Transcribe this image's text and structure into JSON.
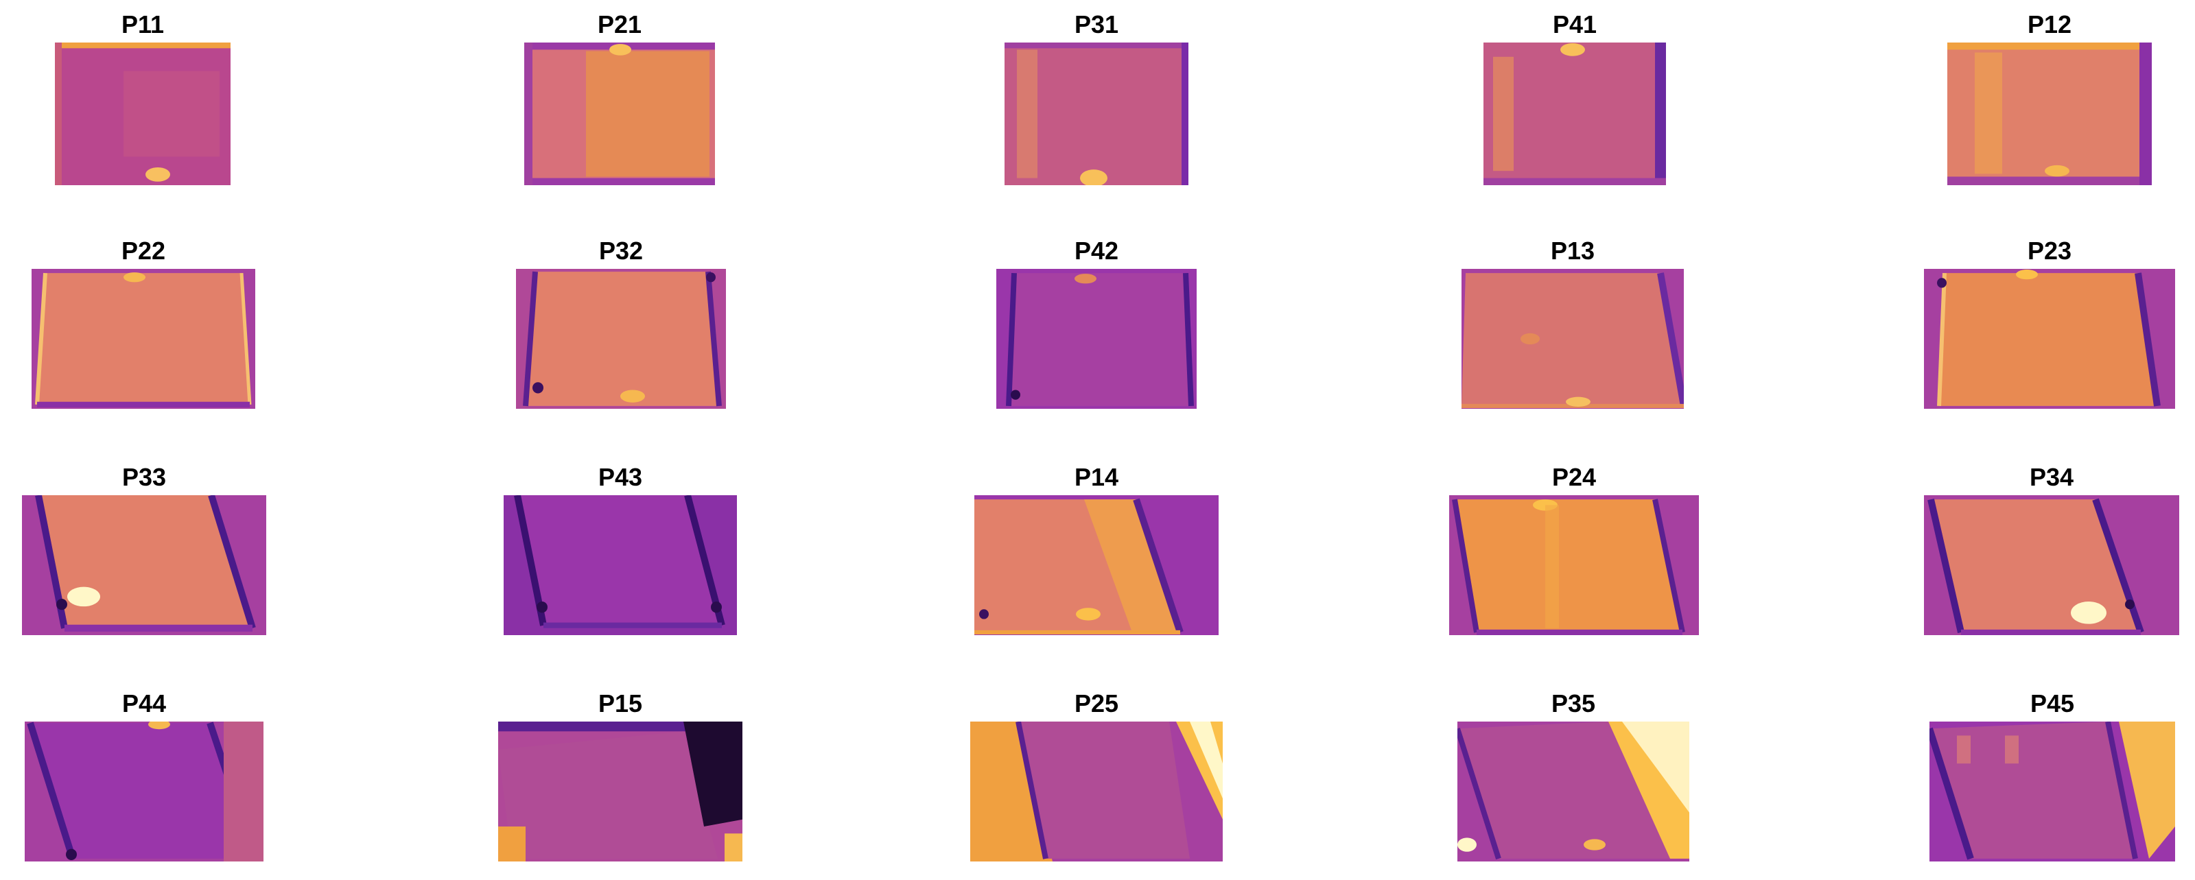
{
  "figure": {
    "panels": [
      {
        "title": "P11",
        "tone": "mid"
      },
      {
        "title": "P21",
        "tone": "warm"
      },
      {
        "title": "P31",
        "tone": "mid"
      },
      {
        "title": "P41",
        "tone": "mid"
      },
      {
        "title": "P12",
        "tone": "warm"
      },
      {
        "title": "P22",
        "tone": "warm"
      },
      {
        "title": "P32",
        "tone": "warm"
      },
      {
        "title": "P42",
        "tone": "cool"
      },
      {
        "title": "P13",
        "tone": "warm"
      },
      {
        "title": "P23",
        "tone": "warm"
      },
      {
        "title": "P33",
        "tone": "warm"
      },
      {
        "title": "P43",
        "tone": "cool"
      },
      {
        "title": "P14",
        "tone": "warm"
      },
      {
        "title": "P24",
        "tone": "warm"
      },
      {
        "title": "P34",
        "tone": "warm"
      },
      {
        "title": "P44",
        "tone": "cool"
      },
      {
        "title": "P15",
        "tone": "cool"
      },
      {
        "title": "P25",
        "tone": "mid"
      },
      {
        "title": "P35",
        "tone": "mid"
      },
      {
        "title": "P45",
        "tone": "cool"
      }
    ],
    "colormap": {
      "cold": "#2a0c4e",
      "cool": "#8a2cab",
      "mid": "#c0508a",
      "warm": "#e8843f",
      "hot": "#fbc04a",
      "peak": "#fff7c8"
    }
  }
}
